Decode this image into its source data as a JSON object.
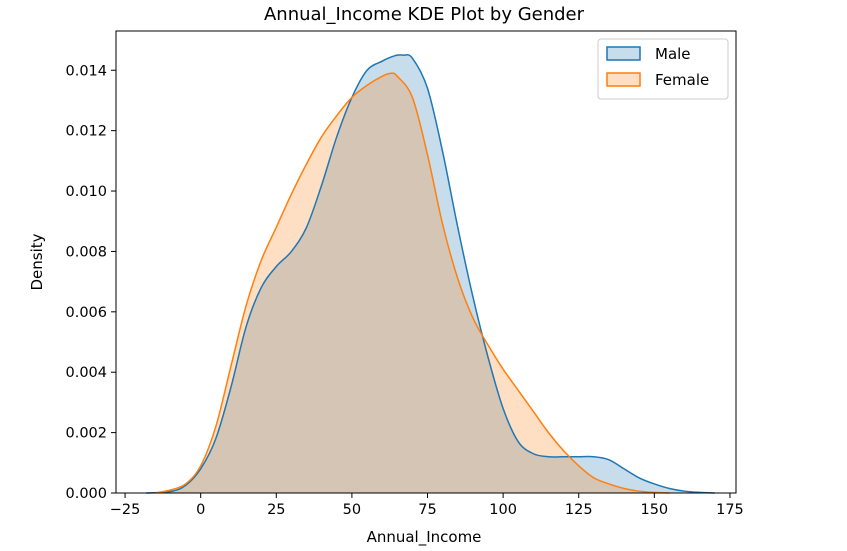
{
  "chart_data": {
    "type": "area",
    "title": "Annual_Income KDE Plot by Gender",
    "xlabel": "Annual_Income",
    "ylabel": "Density",
    "xlim": [
      -28,
      177
    ],
    "ylim": [
      0,
      0.0153
    ],
    "x_ticks": [
      -25,
      0,
      25,
      50,
      75,
      100,
      125,
      150,
      175
    ],
    "x_tick_labels": [
      "−25",
      "0",
      "25",
      "50",
      "75",
      "100",
      "125",
      "150",
      "175"
    ],
    "y_ticks": [
      0,
      0.002,
      0.004,
      0.006,
      0.008,
      0.01,
      0.012,
      0.014
    ],
    "y_tick_labels": [
      "0.000",
      "0.002",
      "0.004",
      "0.006",
      "0.008",
      "0.010",
      "0.012",
      "0.014"
    ],
    "grid": false,
    "legend_position": "top-right",
    "series": [
      {
        "name": "Male",
        "color": "#1f77b4",
        "x": [
          -18,
          -10,
          -5,
          0,
          5,
          10,
          15,
          20,
          25,
          30,
          35,
          40,
          45,
          50,
          55,
          60,
          62,
          65,
          67,
          70,
          75,
          80,
          85,
          90,
          95,
          100,
          105,
          110,
          115,
          120,
          125,
          130,
          135,
          140,
          145,
          150,
          155,
          160,
          165,
          170
        ],
        "y": [
          0,
          5e-05,
          0.00025,
          0.0008,
          0.0018,
          0.0035,
          0.0055,
          0.0068,
          0.0075,
          0.008,
          0.0088,
          0.0102,
          0.0118,
          0.0131,
          0.014,
          0.0143,
          0.0144,
          0.0145,
          0.0145,
          0.0144,
          0.0134,
          0.0113,
          0.0088,
          0.0065,
          0.0045,
          0.0028,
          0.0017,
          0.0013,
          0.0012,
          0.0012,
          0.0012,
          0.0012,
          0.0011,
          0.0008,
          0.0005,
          0.0003,
          0.00015,
          6e-05,
          2e-05,
          0
        ]
      },
      {
        "name": "Female",
        "color": "#ff7f0e",
        "x": [
          -15,
          -10,
          -5,
          0,
          5,
          10,
          15,
          20,
          25,
          30,
          35,
          40,
          45,
          50,
          55,
          60,
          63,
          65,
          70,
          75,
          80,
          85,
          90,
          95,
          100,
          105,
          110,
          115,
          120,
          125,
          130,
          135,
          140,
          145,
          150,
          155
        ],
        "y": [
          0,
          0.0001,
          0.0003,
          0.0009,
          0.0022,
          0.0042,
          0.0062,
          0.0077,
          0.0088,
          0.0099,
          0.0109,
          0.0118,
          0.0125,
          0.0131,
          0.0135,
          0.0138,
          0.0139,
          0.0138,
          0.0131,
          0.0112,
          0.0089,
          0.0071,
          0.0058,
          0.0049,
          0.0041,
          0.0034,
          0.0027,
          0.002,
          0.0014,
          0.0009,
          0.0005,
          0.0003,
          0.00015,
          6e-05,
          2e-05,
          0
        ]
      }
    ]
  }
}
